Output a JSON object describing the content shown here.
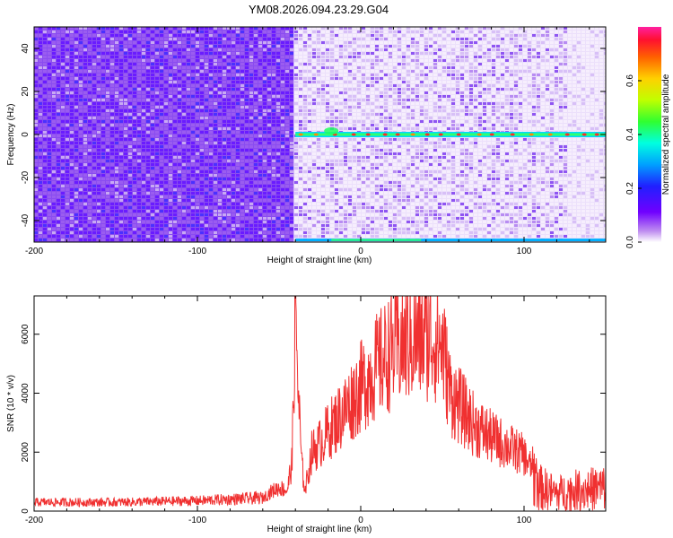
{
  "title": "YM08.2026.094.23.29.G04",
  "chart_data": [
    {
      "type": "heatmap",
      "title": "YM08.2026.094.23.29.G04",
      "xlabel": "Height of straight line (km)",
      "ylabel": "Frequency (Hz)",
      "xlim": [
        -200,
        150
      ],
      "ylim": [
        -50,
        50
      ],
      "xticks": [
        "-200",
        "-100",
        "0",
        "100"
      ],
      "yticks": [
        "-40",
        "-20",
        "0",
        "20",
        "40"
      ],
      "colorbar": {
        "label": "Normalized spectral amplitude",
        "range": [
          0,
          0.8
        ],
        "ticks": [
          "0.0",
          "0.2",
          "0.4",
          "0.6"
        ]
      },
      "features": {
        "low_amplitude_region_x": [
          -200,
          -41
        ],
        "signal_band_frequency_hz": 0,
        "signal_band_x": [
          -40,
          150
        ],
        "edge_band_frequency_hz": -49
      }
    },
    {
      "type": "line",
      "xlabel": "Height of straight line (km)",
      "ylabel": "SNR (10 * v/v)",
      "xlim": [
        -200,
        150
      ],
      "ylim": [
        0,
        7300
      ],
      "xticks": [
        "-200",
        "-100",
        "0",
        "100"
      ],
      "yticks": [
        "0",
        "2000",
        "4000",
        "6000"
      ],
      "color": "#f03030",
      "series": [
        {
          "x": [
            -200,
            -150,
            -100,
            -80,
            -60,
            -55,
            -50,
            -45,
            -42,
            -40,
            -38,
            -36,
            -34,
            -30,
            -25,
            -20,
            -10,
            0,
            10,
            20,
            30,
            40,
            45,
            50,
            55,
            60,
            70,
            80,
            90,
            100,
            105,
            110,
            120,
            130,
            140,
            150
          ],
          "values": [
            300,
            300,
            350,
            400,
            450,
            650,
            800,
            700,
            1700,
            7200,
            3600,
            1500,
            700,
            2000,
            2300,
            2700,
            3400,
            4200,
            4900,
            5500,
            5800,
            5900,
            5850,
            5600,
            4000,
            3600,
            2900,
            2500,
            2200,
            1900,
            1400,
            800,
            600,
            700,
            750,
            800
          ]
        }
      ]
    }
  ]
}
